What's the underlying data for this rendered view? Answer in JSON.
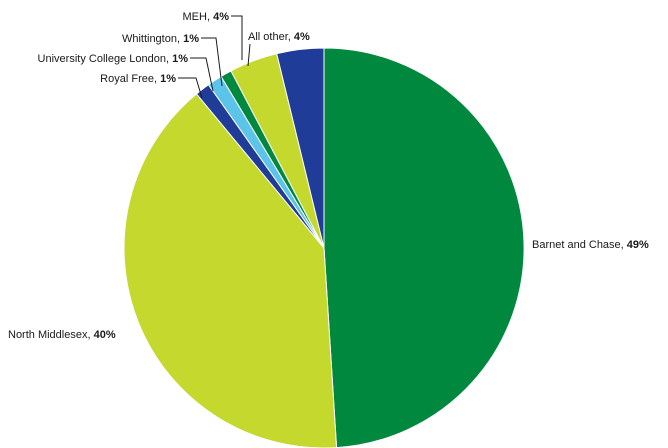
{
  "chart_data": {
    "type": "pie",
    "title": "",
    "slices": [
      {
        "label": "Barnet and Chase",
        "pct_text": "49%",
        "value": 49,
        "color": "#00883e"
      },
      {
        "label": "North Middlesex",
        "pct_text": "40%",
        "value": 40,
        "color": "#c4d82e"
      },
      {
        "label": "Royal Free",
        "pct_text": "1%",
        "value": 1.2,
        "color": "#1f3c98"
      },
      {
        "label": "University College London",
        "pct_text": "1%",
        "value": 1.2,
        "color": "#5bc4e8"
      },
      {
        "label": "Whittington",
        "pct_text": "1%",
        "value": 0.9,
        "color": "#00883e"
      },
      {
        "label": "MEH",
        "pct_text": "4%",
        "value": 3.9,
        "color": "#c4d82e"
      },
      {
        "label": "All other",
        "pct_text": "4%",
        "value": 3.8,
        "color": "#1f3c98"
      }
    ]
  }
}
